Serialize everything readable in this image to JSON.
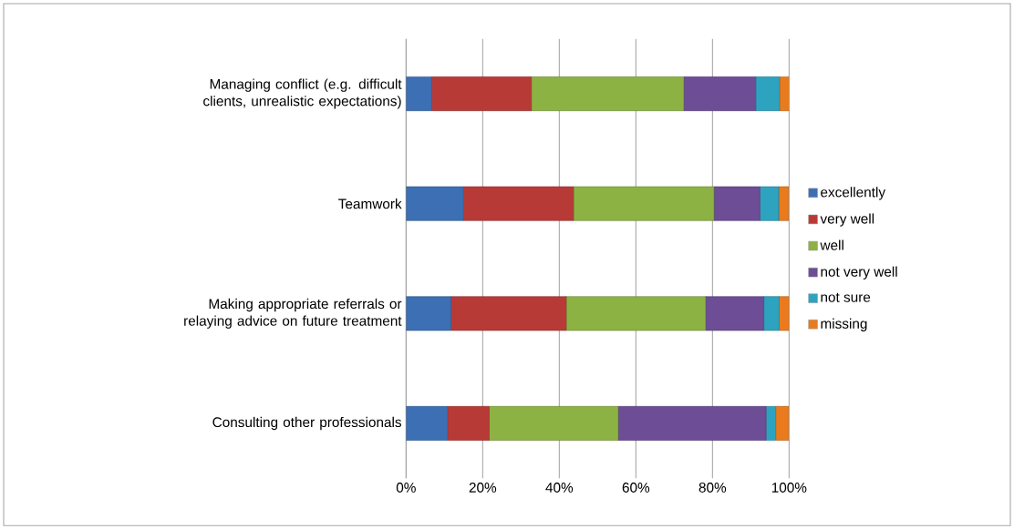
{
  "chart_data": {
    "type": "bar",
    "orientation": "horizontal",
    "stacked": true,
    "categories": [
      "Managing conflict (e.g. difficult clients, unrealistic expectations)",
      "Teamwork",
      "Making appropriate referrals or relaying advice on future treatment",
      "Consulting other professionals"
    ],
    "series": [
      {
        "name": "excellently",
        "color": "#3c6fb4",
        "values": [
          6.7,
          15.0,
          11.7,
          10.8
        ]
      },
      {
        "name": "very well",
        "color": "#b83a37",
        "values": [
          26.0,
          28.7,
          30.1,
          10.9
        ]
      },
      {
        "name": "well",
        "color": "#8db244",
        "values": [
          39.8,
          36.7,
          36.4,
          33.7
        ]
      },
      {
        "name": "not very well",
        "color": "#6c4d96",
        "values": [
          18.8,
          12.0,
          15.2,
          38.6
        ]
      },
      {
        "name": "not sure",
        "color": "#2ea3c0",
        "values": [
          6.2,
          4.9,
          4.0,
          2.5
        ]
      },
      {
        "name": "missing",
        "color": "#e97b1e",
        "values": [
          2.6,
          2.6,
          2.6,
          3.4
        ]
      }
    ],
    "xlim": [
      0,
      100
    ],
    "xticks": [
      {
        "value": 0,
        "label": "0%"
      },
      {
        "value": 20,
        "label": "20%"
      },
      {
        "value": 40,
        "label": "40%"
      },
      {
        "value": 60,
        "label": "60%"
      },
      {
        "value": 80,
        "label": "80%"
      },
      {
        "value": 100,
        "label": "100%"
      }
    ],
    "grid": "x",
    "legend": "right"
  }
}
